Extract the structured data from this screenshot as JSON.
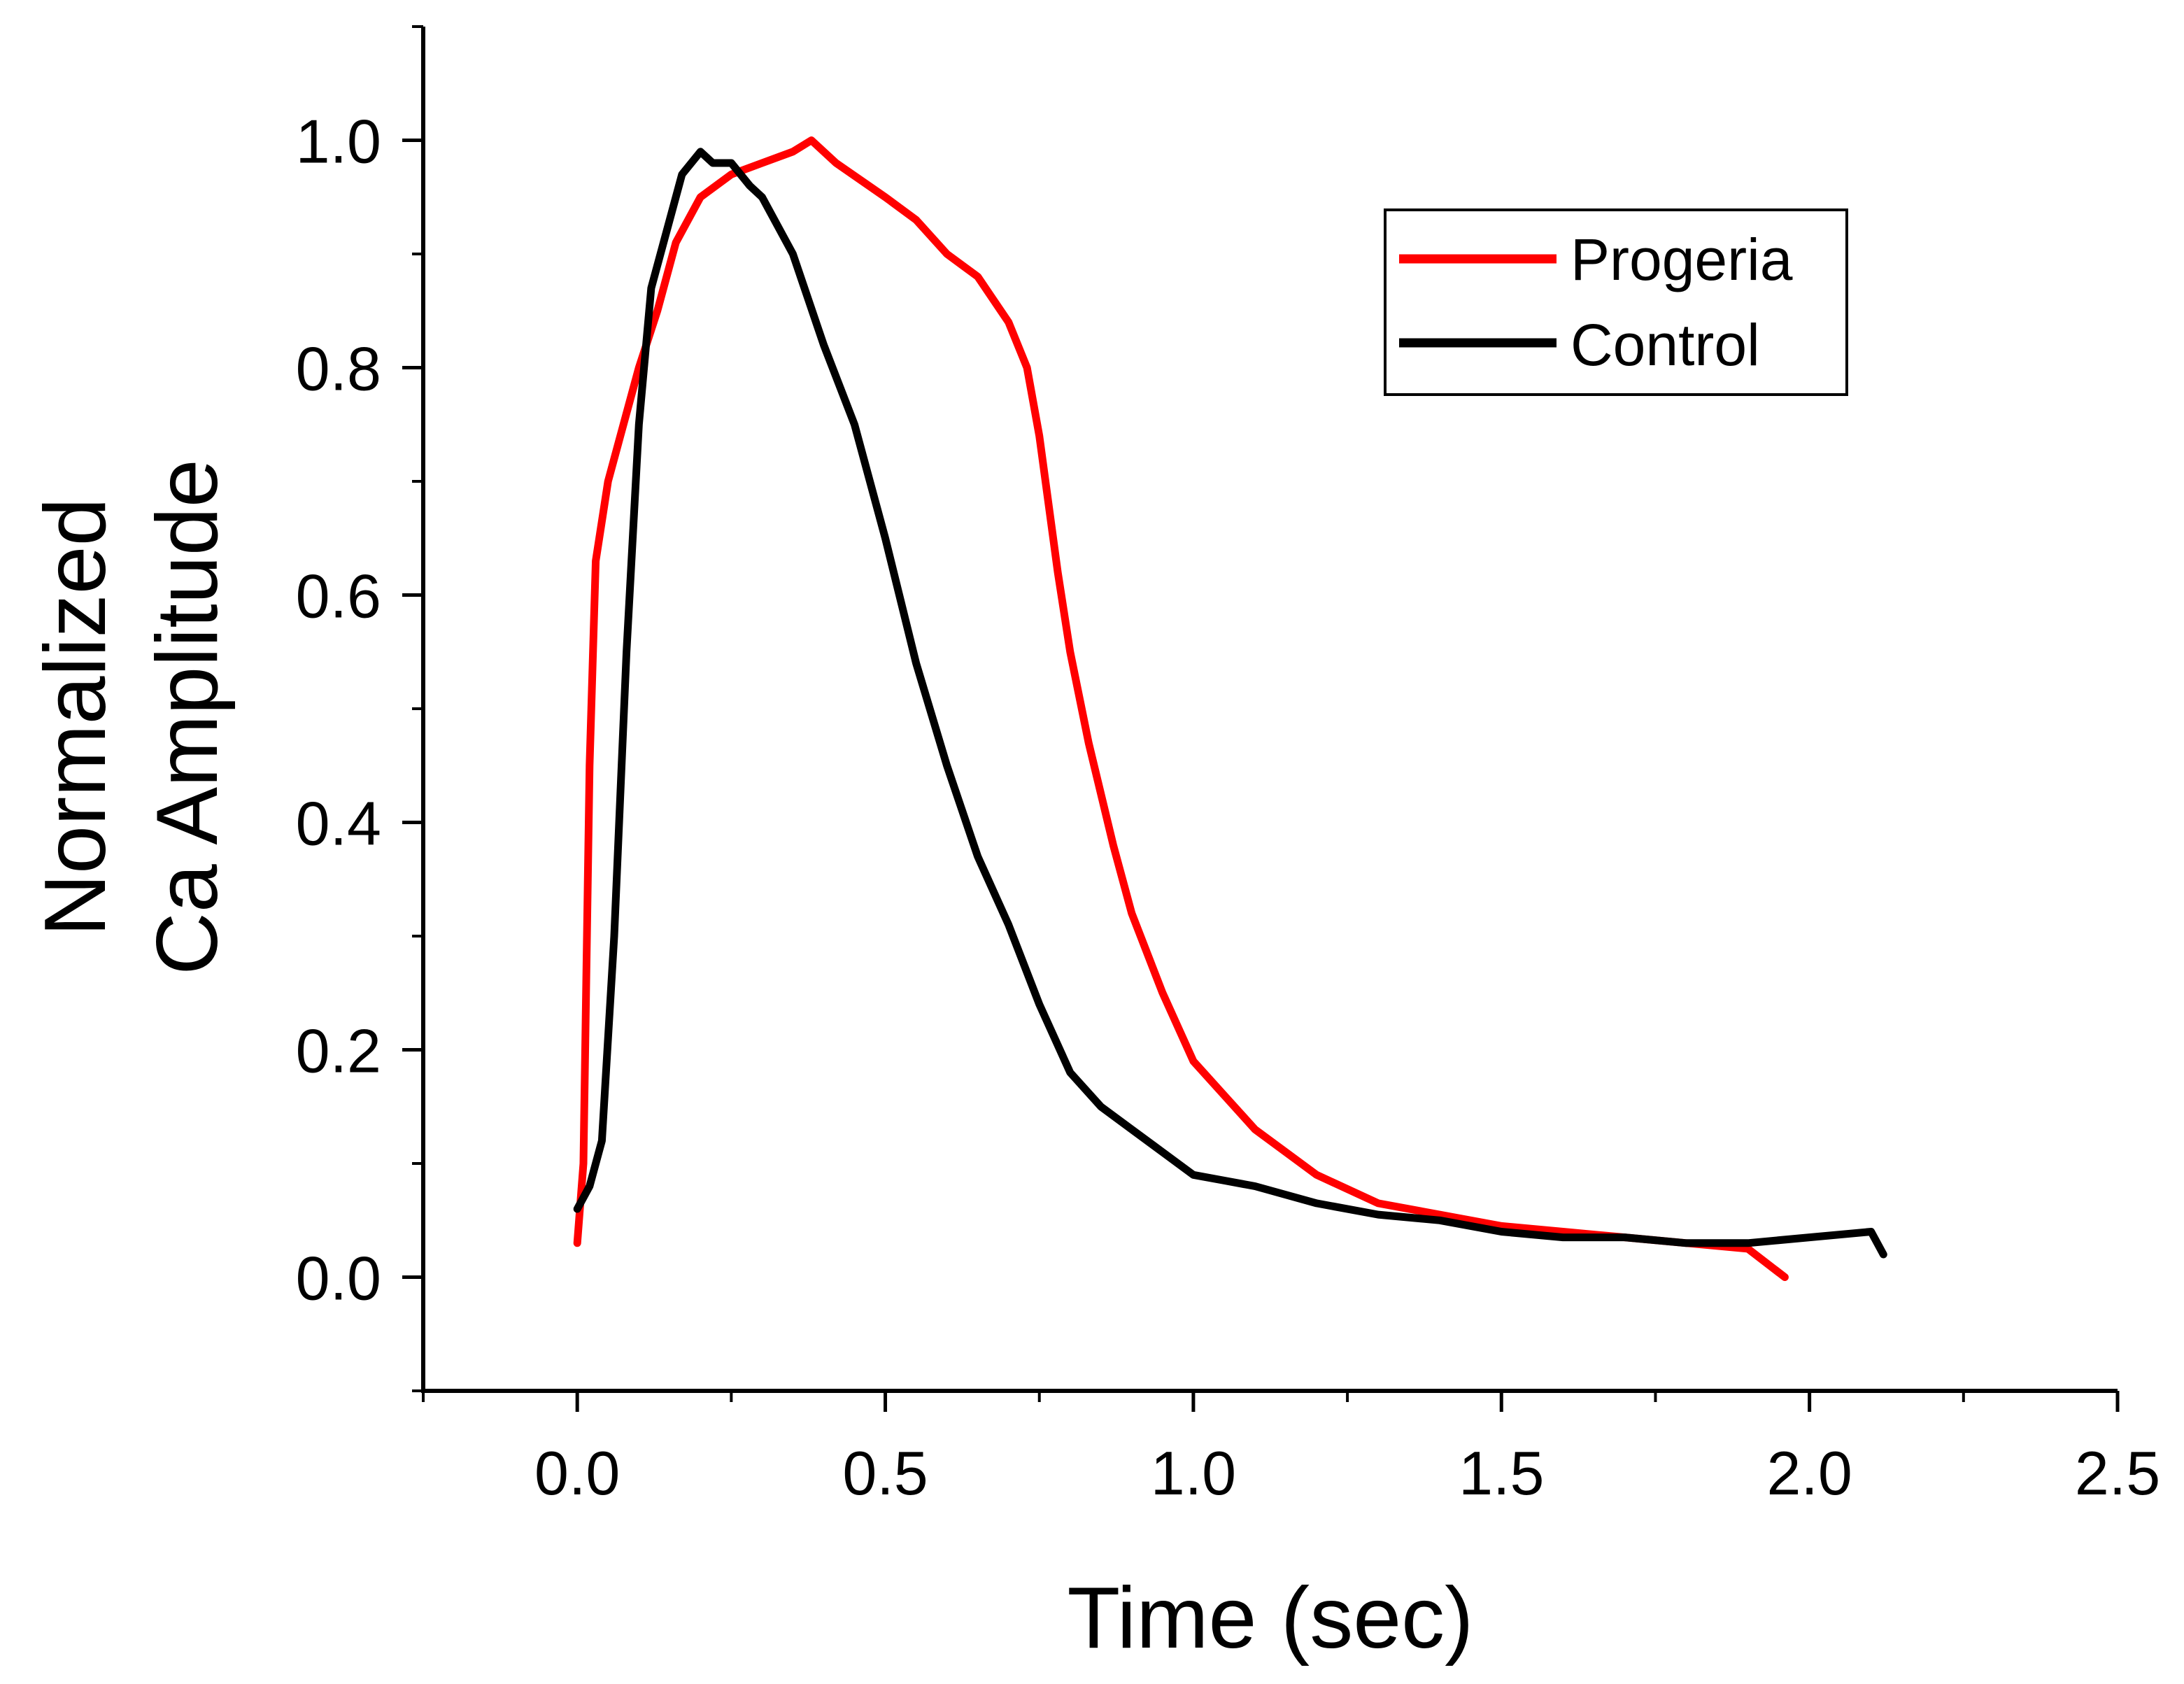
{
  "chart_data": {
    "type": "line",
    "title": "",
    "xlabel": "Time (sec)",
    "ylabel_lines": [
      "Normalized",
      "Ca Amplitude"
    ],
    "xlim": [
      -0.25,
      2.5
    ],
    "ylim": [
      -0.1,
      1.1
    ],
    "x_ticks": [
      0.0,
      0.5,
      1.0,
      1.5,
      2.0,
      2.5
    ],
    "x_tick_labels": [
      "0.0",
      "0.5",
      "1.0",
      "1.5",
      "2.0",
      "2.5"
    ],
    "y_ticks": [
      0.0,
      0.2,
      0.4,
      0.6,
      0.8,
      1.0
    ],
    "y_tick_labels": [
      "0.0",
      "0.2",
      "0.4",
      "0.6",
      "0.8",
      "1.0"
    ],
    "grid": false,
    "legend_position": "top-right",
    "series": [
      {
        "name": "Progeria",
        "color": "#ff0000",
        "x": [
          0.0,
          0.01,
          0.02,
          0.03,
          0.05,
          0.07,
          0.1,
          0.13,
          0.16,
          0.2,
          0.25,
          0.3,
          0.35,
          0.38,
          0.42,
          0.5,
          0.55,
          0.6,
          0.65,
          0.7,
          0.73,
          0.75,
          0.78,
          0.8,
          0.83,
          0.87,
          0.9,
          0.95,
          1.0,
          1.05,
          1.1,
          1.2,
          1.3,
          1.4,
          1.5,
          1.6,
          1.7,
          1.8,
          1.9,
          1.96
        ],
        "y": [
          0.03,
          0.1,
          0.45,
          0.63,
          0.7,
          0.74,
          0.8,
          0.85,
          0.91,
          0.95,
          0.97,
          0.98,
          0.99,
          1.0,
          0.98,
          0.95,
          0.93,
          0.9,
          0.88,
          0.84,
          0.8,
          0.74,
          0.62,
          0.55,
          0.47,
          0.38,
          0.32,
          0.25,
          0.19,
          0.16,
          0.13,
          0.09,
          0.065,
          0.055,
          0.045,
          0.04,
          0.035,
          0.03,
          0.025,
          0.0
        ]
      },
      {
        "name": "Control",
        "color": "#000000",
        "x": [
          0.0,
          0.02,
          0.04,
          0.06,
          0.08,
          0.1,
          0.12,
          0.15,
          0.17,
          0.2,
          0.22,
          0.25,
          0.28,
          0.3,
          0.35,
          0.4,
          0.45,
          0.5,
          0.55,
          0.6,
          0.65,
          0.7,
          0.75,
          0.8,
          0.85,
          0.9,
          0.95,
          1.0,
          1.05,
          1.1,
          1.2,
          1.3,
          1.4,
          1.5,
          1.6,
          1.7,
          1.8,
          1.9,
          2.0,
          2.1,
          2.12
        ],
        "y": [
          0.06,
          0.08,
          0.12,
          0.3,
          0.55,
          0.75,
          0.87,
          0.93,
          0.97,
          0.99,
          0.98,
          0.98,
          0.96,
          0.95,
          0.9,
          0.82,
          0.75,
          0.65,
          0.54,
          0.45,
          0.37,
          0.31,
          0.24,
          0.18,
          0.15,
          0.13,
          0.11,
          0.09,
          0.085,
          0.08,
          0.065,
          0.055,
          0.05,
          0.04,
          0.035,
          0.035,
          0.03,
          0.03,
          0.035,
          0.04,
          0.02
        ]
      }
    ]
  }
}
